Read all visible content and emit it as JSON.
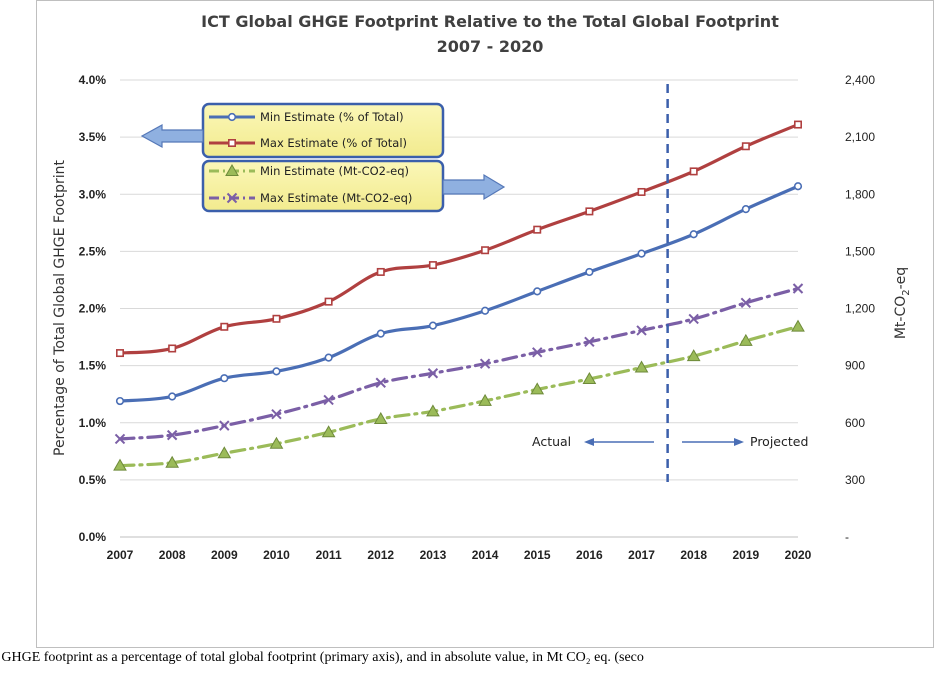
{
  "chart_data": {
    "type": "line",
    "title": "ICT Global GHGE Footprint Relative to the Total Global Footprint",
    "subtitle": "2007 - 2020",
    "x": [
      2007,
      2008,
      2009,
      2010,
      2011,
      2012,
      2013,
      2014,
      2015,
      2016,
      2017,
      2018,
      2019,
      2020
    ],
    "x_tick_labels": [
      "2007",
      "2008",
      "2009",
      "2010",
      "2011",
      "2012",
      "2013",
      "2014",
      "2015",
      "2016",
      "2017",
      "2018",
      "2019",
      "2020"
    ],
    "ylabel_left": "Percentage of Total Global GHGE Footprint",
    "ylabel_right_parts": [
      "Mt-CO",
      "2",
      "-eq"
    ],
    "ylim_left": [
      0,
      4
    ],
    "ylim_right": [
      0,
      2400
    ],
    "y_left_tick_values": [
      0,
      0.5,
      1,
      1.5,
      2,
      2.5,
      3,
      3.5,
      4
    ],
    "y_left_tick_labels": [
      "0.0%",
      "0.5%",
      "1.0%",
      "1.5%",
      "2.0%",
      "2.5%",
      "3.0%",
      "3.5%",
      "4.0%"
    ],
    "y_right_tick_values": [
      0,
      300,
      600,
      900,
      1200,
      1500,
      1800,
      2100,
      2400
    ],
    "y_right_tick_labels": [
      "-",
      "300",
      "600",
      "900",
      "1,200",
      "1,500",
      "1,800",
      "2,100",
      "2,400"
    ],
    "grid": "horizontal",
    "series": [
      {
        "name": "Min Estimate (% of Total)",
        "axis": "left",
        "color": "#4a6eb5",
        "style": "solid",
        "marker": "circle",
        "values": [
          1.19,
          1.23,
          1.39,
          1.45,
          1.57,
          1.78,
          1.85,
          1.98,
          2.15,
          2.32,
          2.48,
          2.65,
          2.87,
          3.07
        ]
      },
      {
        "name": "Max Estimate (% of Total)",
        "axis": "left",
        "color": "#b04040",
        "style": "solid",
        "marker": "square",
        "values": [
          1.61,
          1.65,
          1.84,
          1.91,
          2.06,
          2.32,
          2.38,
          2.51,
          2.69,
          2.85,
          3.02,
          3.2,
          3.42,
          3.61
        ]
      },
      {
        "name": "Min Estimate (Mt-CO2-eq)",
        "axis": "right",
        "color": "#9bbb59",
        "style": "dashdot",
        "marker": "triangle",
        "values": [
          375,
          390,
          440,
          490,
          550,
          620,
          660,
          715,
          775,
          830,
          890,
          950,
          1030,
          1105
        ]
      },
      {
        "name": "Max Estimate (Mt-CO2-eq)",
        "axis": "right",
        "color": "#7b5fa6",
        "style": "dashdot",
        "marker": "x",
        "values": [
          515,
          535,
          585,
          645,
          720,
          810,
          860,
          910,
          970,
          1025,
          1085,
          1145,
          1230,
          1305
        ]
      }
    ],
    "legend_position": "top-left",
    "annotations": {
      "divider_at": 2017.5,
      "actual_label": "Actual",
      "projected_label": "Projected"
    }
  },
  "caption": "l GHGE footprint as a percentage of total global footprint (primary axis), and in absolute value, in Mt CO₂ eq. (seco"
}
